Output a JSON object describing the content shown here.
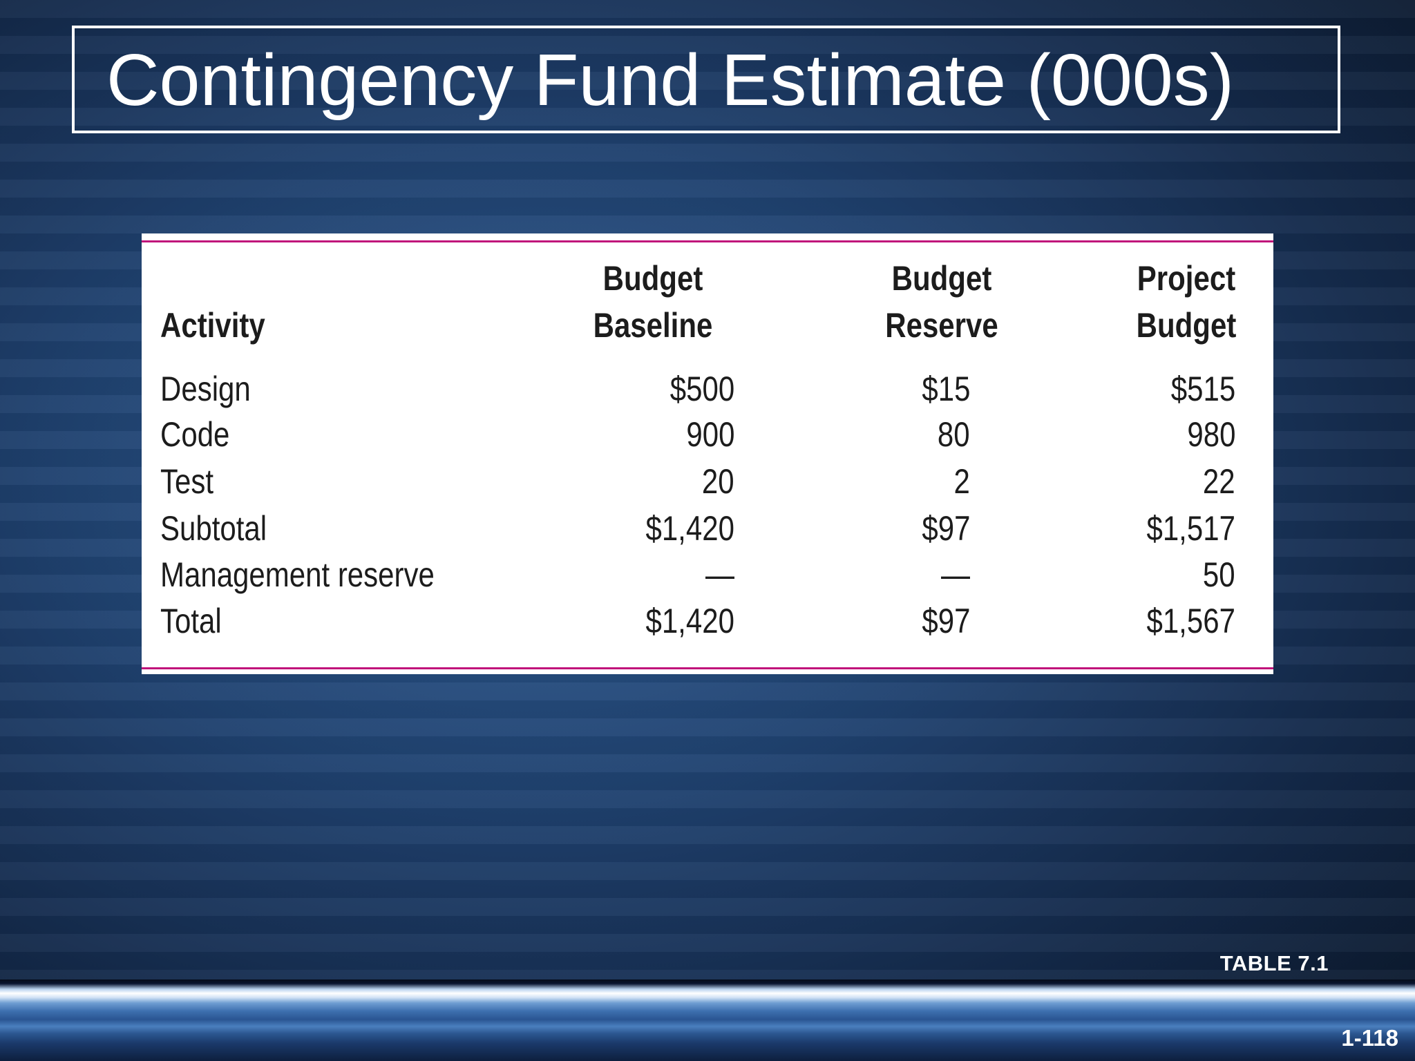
{
  "slide": {
    "title": "Contingency Fund Estimate (000s)",
    "table_caption": "TABLE 7.1",
    "page_number": "1-118"
  },
  "table": {
    "headers": {
      "activity": "Activity",
      "baseline_line1": "Budget",
      "baseline_line2": "Baseline",
      "reserve_line1": "Budget",
      "reserve_line2": "Reserve",
      "project_line1": "Project",
      "project_line2": "Budget"
    },
    "rows": [
      {
        "activity": "Design",
        "baseline": "$500",
        "reserve": "$15",
        "project": "$515"
      },
      {
        "activity": "Code",
        "baseline": "900",
        "reserve": "80",
        "project": "980"
      },
      {
        "activity": "Test",
        "baseline": "20",
        "reserve": "2",
        "project": "22"
      },
      {
        "activity": "Subtotal",
        "baseline": "$1,420",
        "reserve": "$97",
        "project": "$1,517"
      },
      {
        "activity": "Management reserve",
        "baseline": "—",
        "reserve": "—",
        "project": "50"
      },
      {
        "activity": "Total",
        "baseline": "$1,420",
        "reserve": "$97",
        "project": "$1,567"
      }
    ]
  },
  "colors": {
    "rule": "#c0117a",
    "title_text": "#ffffff",
    "table_text": "#1c1c1c"
  }
}
